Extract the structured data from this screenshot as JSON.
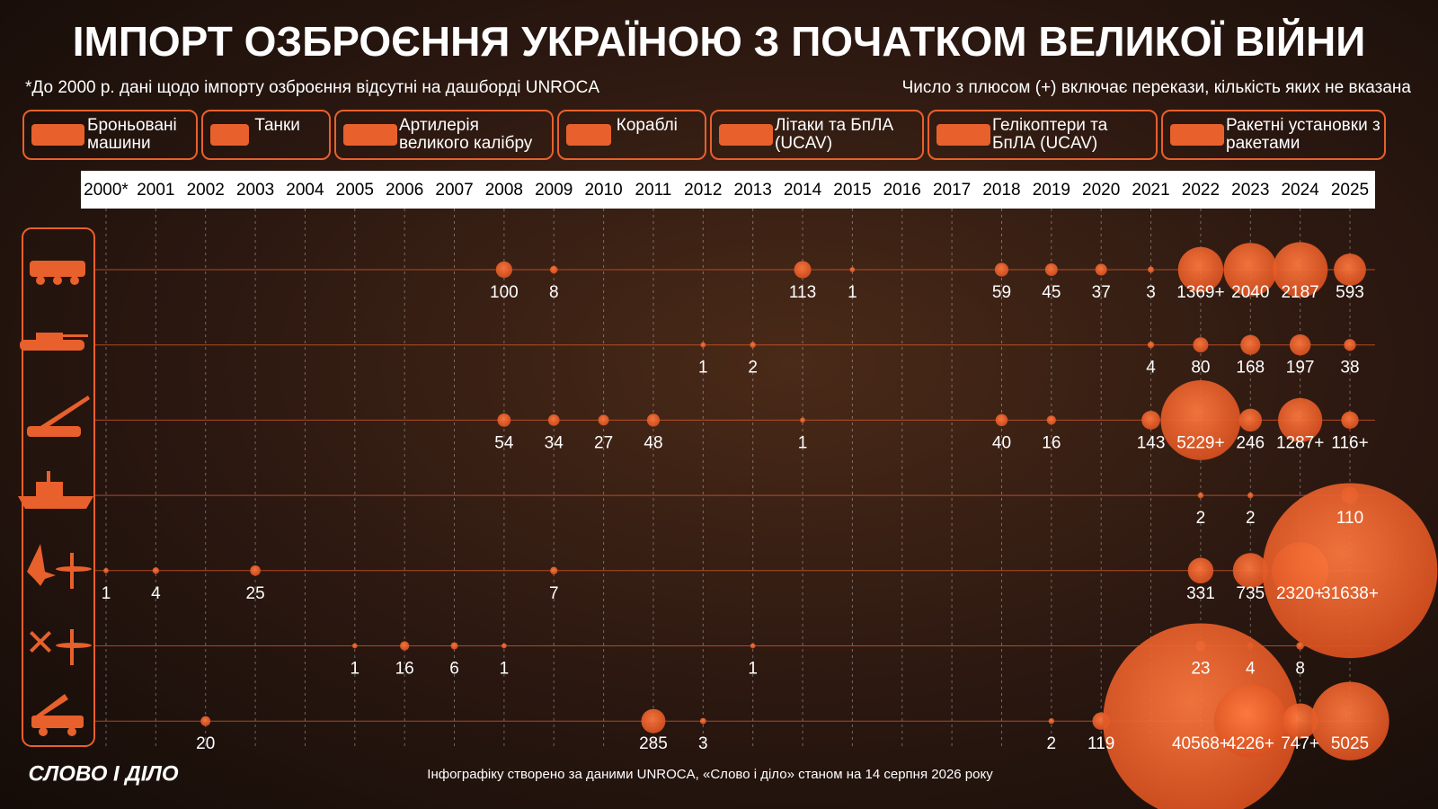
{
  "chart_data": {
    "type": "bubble",
    "title": "ІМПОРТ ОЗБРОЄННЯ УКРАЇНОЮ З ПОЧАТКОМ ВЕЛИКОЇ ВІЙНИ",
    "note_left": "*До 2000 р. дані щодо імпорту озброєння відсутні на дашборді UNROCA",
    "note_right": "Число з плюсом (+) включає перекази, кількість яких не вказана",
    "source": "Інфографіку створено за даними UNROCA, «Слово і діло» станом на 14 серпня 2026 року",
    "logo": "СЛОВО І ДІЛО",
    "color": "#e8602c",
    "categories": [
      "2000*",
      "2001",
      "2002",
      "2003",
      "2004",
      "2005",
      "2006",
      "2007",
      "2008",
      "2009",
      "2010",
      "2011",
      "2012",
      "2013",
      "2014",
      "2015",
      "2016",
      "2017",
      "2018",
      "2019",
      "2020",
      "2021",
      "2022",
      "2023",
      "2024",
      "2025"
    ],
    "series": [
      {
        "name": "Броньовані машини",
        "values": [
          null,
          null,
          null,
          null,
          null,
          null,
          null,
          null,
          100,
          8,
          null,
          null,
          null,
          null,
          113,
          1,
          null,
          null,
          59,
          45,
          37,
          3,
          1369,
          2040,
          2187,
          593
        ],
        "value_labels": [
          null,
          null,
          null,
          null,
          null,
          null,
          null,
          null,
          null,
          null,
          null,
          null,
          null,
          null,
          null,
          null,
          null,
          null,
          null,
          null,
          null,
          null,
          "1369+",
          null,
          null,
          null
        ]
      },
      {
        "name": "Танки",
        "values": [
          null,
          null,
          null,
          null,
          null,
          null,
          null,
          null,
          null,
          null,
          null,
          null,
          1,
          2,
          null,
          null,
          null,
          null,
          null,
          null,
          null,
          4,
          80,
          168,
          197,
          38
        ]
      },
      {
        "name": "Артилерія великого калібру",
        "values": [
          null,
          null,
          null,
          null,
          null,
          null,
          null,
          null,
          54,
          34,
          27,
          48,
          null,
          null,
          1,
          null,
          null,
          null,
          40,
          16,
          null,
          143,
          5229,
          246,
          1287,
          116
        ],
        "value_labels": [
          null,
          null,
          null,
          null,
          null,
          null,
          null,
          null,
          null,
          null,
          null,
          null,
          null,
          null,
          null,
          null,
          null,
          null,
          null,
          null,
          null,
          null,
          "5229+",
          null,
          "1287+",
          "116+"
        ]
      },
      {
        "name": "Кораблі",
        "values": [
          null,
          null,
          null,
          null,
          null,
          null,
          null,
          null,
          null,
          null,
          null,
          null,
          null,
          null,
          null,
          null,
          null,
          null,
          null,
          null,
          null,
          null,
          2,
          2,
          null,
          110
        ]
      },
      {
        "name": "Літаки та БпЛА (UCAV)",
        "values": [
          1,
          4,
          null,
          25,
          null,
          null,
          null,
          null,
          null,
          7,
          null,
          null,
          null,
          null,
          null,
          null,
          null,
          null,
          null,
          null,
          null,
          null,
          331,
          735,
          2320,
          31638
        ],
        "value_labels": [
          null,
          null,
          null,
          null,
          null,
          null,
          null,
          null,
          null,
          null,
          null,
          null,
          null,
          null,
          null,
          null,
          null,
          null,
          null,
          null,
          null,
          null,
          null,
          null,
          "2320+",
          "31638+"
        ]
      },
      {
        "name": "Гелікоптери та БпЛА (UCAV)",
        "values": [
          null,
          null,
          null,
          null,
          null,
          1,
          16,
          6,
          1,
          null,
          null,
          null,
          null,
          1,
          null,
          null,
          null,
          null,
          null,
          null,
          null,
          null,
          23,
          4,
          8,
          null
        ]
      },
      {
        "name": "Ракетні установки з ракетами",
        "values": [
          null,
          null,
          20,
          null,
          null,
          null,
          null,
          null,
          null,
          null,
          null,
          285,
          3,
          null,
          null,
          null,
          null,
          null,
          null,
          2,
          119,
          null,
          40568,
          4226,
          747,
          5025
        ],
        "value_labels": [
          null,
          null,
          null,
          null,
          null,
          null,
          null,
          null,
          null,
          null,
          null,
          null,
          null,
          null,
          null,
          null,
          null,
          null,
          null,
          null,
          null,
          null,
          "40568+",
          "4226+",
          "747+",
          null
        ]
      }
    ]
  }
}
